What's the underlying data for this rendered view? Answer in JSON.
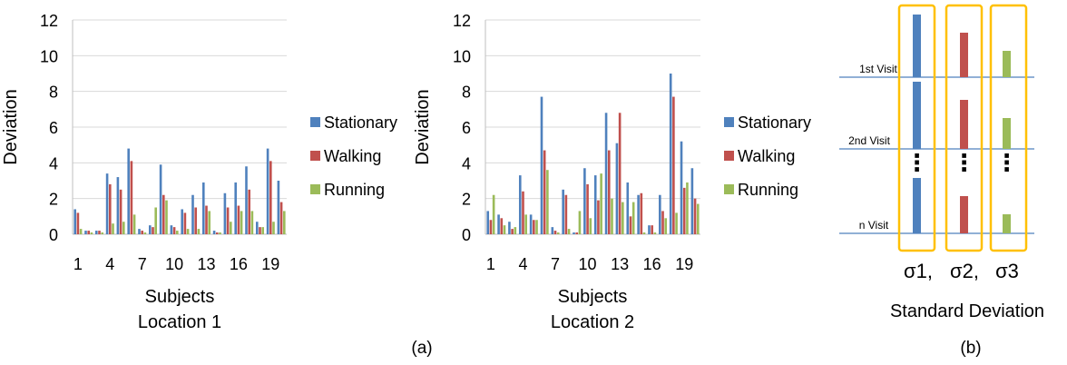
{
  "figure": {
    "panel_a_caption": "(a)",
    "panel_b_caption": "(b)"
  },
  "colors": {
    "stationary": "#4F81BD",
    "walking": "#C0504D",
    "running": "#9BBB59",
    "gridline": "#D9D9D9",
    "axis": "#BFBFBF",
    "visit_line": "#4F81BD",
    "highlight_box": "#FFC000"
  },
  "chart_data": [
    {
      "type": "bar",
      "ylabel": "Deviation",
      "xlabel": "Subjects",
      "caption": "Location 1",
      "ylim": [
        0,
        12
      ],
      "y_ticks": [
        0,
        2,
        4,
        6,
        8,
        10,
        12
      ],
      "categories": [
        1,
        2,
        3,
        4,
        5,
        6,
        7,
        8,
        9,
        10,
        11,
        12,
        13,
        14,
        15,
        16,
        17,
        18,
        19,
        20
      ],
      "x_tick_labels": [
        "1",
        "4",
        "7",
        "10",
        "13",
        "16",
        "19"
      ],
      "x_tick_categories": [
        1,
        4,
        7,
        10,
        13,
        16,
        19
      ],
      "grid": true,
      "legend_position": "right",
      "series": [
        {
          "name": "Stationary",
          "values": [
            1.4,
            0.2,
            0.2,
            3.4,
            3.2,
            4.8,
            0.3,
            0.5,
            3.9,
            0.5,
            1.4,
            2.2,
            2.9,
            0.2,
            2.3,
            2.9,
            3.8,
            0.7,
            4.8,
            3.0
          ]
        },
        {
          "name": "Walking",
          "values": [
            1.2,
            0.2,
            0.2,
            2.8,
            2.5,
            4.1,
            0.2,
            0.4,
            2.2,
            0.4,
            1.2,
            1.5,
            1.6,
            0.1,
            1.5,
            1.6,
            2.5,
            0.4,
            4.1,
            1.8
          ]
        },
        {
          "name": "Running",
          "values": [
            0.3,
            0.1,
            0.1,
            0.6,
            0.7,
            1.1,
            0.1,
            1.5,
            1.9,
            0.2,
            0.3,
            0.3,
            1.3,
            0.1,
            0.7,
            1.3,
            1.3,
            0.4,
            0.7,
            1.3
          ]
        }
      ]
    },
    {
      "type": "bar",
      "ylabel": "Deviation",
      "xlabel": "Subjects",
      "caption": "Location 2",
      "ylim": [
        0,
        12
      ],
      "y_ticks": [
        0,
        2,
        4,
        6,
        8,
        10,
        12
      ],
      "categories": [
        1,
        2,
        3,
        4,
        5,
        6,
        7,
        8,
        9,
        10,
        11,
        12,
        13,
        14,
        15,
        16,
        17,
        18,
        19,
        20
      ],
      "x_tick_labels": [
        "1",
        "4",
        "7",
        "10",
        "13",
        "16",
        "19"
      ],
      "x_tick_categories": [
        1,
        4,
        7,
        10,
        13,
        16,
        19
      ],
      "grid": true,
      "legend_position": "right",
      "series": [
        {
          "name": "Stationary",
          "values": [
            1.3,
            1.1,
            0.7,
            3.3,
            1.1,
            7.7,
            0.4,
            2.5,
            0.1,
            3.7,
            3.3,
            6.8,
            5.1,
            2.9,
            2.2,
            0.5,
            2.2,
            9.0,
            5.2,
            3.7
          ]
        },
        {
          "name": "Walking",
          "values": [
            0.8,
            0.9,
            0.3,
            2.4,
            0.8,
            4.7,
            0.2,
            2.2,
            0.1,
            2.8,
            1.9,
            4.7,
            6.8,
            1.0,
            2.3,
            0.5,
            1.3,
            7.7,
            2.6,
            2.0
          ]
        },
        {
          "name": "Running",
          "values": [
            2.2,
            0.5,
            0.4,
            1.1,
            0.8,
            3.6,
            0.1,
            0.3,
            1.3,
            0.9,
            3.4,
            2.0,
            1.8,
            1.8,
            0.1,
            0.1,
            0.9,
            1.2,
            2.9,
            1.7
          ]
        }
      ]
    }
  ],
  "diagram": {
    "visit_labels": [
      "1st Visit",
      "2nd Visit",
      "n Visit"
    ],
    "ellipsis": "⋮",
    "sigma_labels": [
      "σ1,",
      "σ2,",
      "σ3"
    ],
    "footer": "Standard Deviation"
  }
}
